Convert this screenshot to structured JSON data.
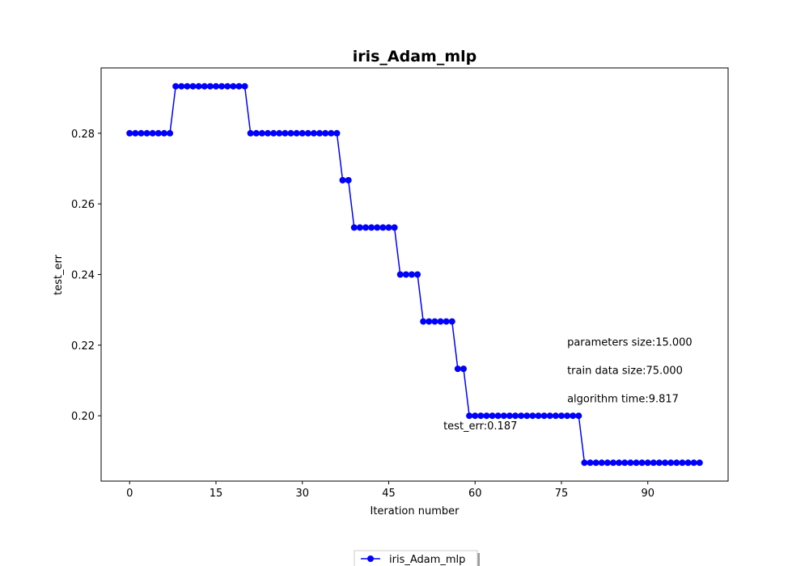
{
  "chart_data": {
    "type": "line",
    "title": "iris_Adam_mlp",
    "xlabel": "Iteration number",
    "ylabel": "test_err",
    "xlim": [
      -4.95,
      103.95
    ],
    "ylim": [
      0.1815,
      0.2985
    ],
    "xticks": [
      0,
      15,
      30,
      45,
      60,
      75,
      90
    ],
    "yticks": [
      0.2,
      0.22,
      0.24,
      0.26,
      0.28
    ],
    "ytick_labels": [
      "0.20",
      "0.22",
      "0.24",
      "0.26",
      "0.28"
    ],
    "grid": false,
    "legend_position": "bottom-center",
    "series": [
      {
        "name": "iris_Adam_mlp",
        "color": "#0000ff",
        "marker": "circle",
        "x": [
          0,
          1,
          2,
          3,
          4,
          5,
          6,
          7,
          8,
          9,
          10,
          11,
          12,
          13,
          14,
          15,
          16,
          17,
          18,
          19,
          20,
          21,
          22,
          23,
          24,
          25,
          26,
          27,
          28,
          29,
          30,
          31,
          32,
          33,
          34,
          35,
          36,
          37,
          38,
          39,
          40,
          41,
          42,
          43,
          44,
          45,
          46,
          47,
          48,
          49,
          50,
          51,
          52,
          53,
          54,
          55,
          56,
          57,
          58,
          59,
          60,
          61,
          62,
          63,
          64,
          65,
          66,
          67,
          68,
          69,
          70,
          71,
          72,
          73,
          74,
          75,
          76,
          77,
          78,
          79,
          80,
          81,
          82,
          83,
          84,
          85,
          86,
          87,
          88,
          89,
          90,
          91,
          92,
          93,
          94,
          95,
          96,
          97,
          98,
          99
        ],
        "values": [
          0.28,
          0.28,
          0.28,
          0.28,
          0.28,
          0.28,
          0.28,
          0.28,
          0.2933,
          0.2933,
          0.2933,
          0.2933,
          0.2933,
          0.2933,
          0.2933,
          0.2933,
          0.2933,
          0.2933,
          0.2933,
          0.2933,
          0.2933,
          0.28,
          0.28,
          0.28,
          0.28,
          0.28,
          0.28,
          0.28,
          0.28,
          0.28,
          0.28,
          0.28,
          0.28,
          0.28,
          0.28,
          0.28,
          0.28,
          0.2667,
          0.2667,
          0.2533,
          0.2533,
          0.2533,
          0.2533,
          0.2533,
          0.2533,
          0.2533,
          0.2533,
          0.24,
          0.24,
          0.24,
          0.24,
          0.2267,
          0.2267,
          0.2267,
          0.2267,
          0.2267,
          0.2267,
          0.2133,
          0.2133,
          0.2,
          0.2,
          0.2,
          0.2,
          0.2,
          0.2,
          0.2,
          0.2,
          0.2,
          0.2,
          0.2,
          0.2,
          0.2,
          0.2,
          0.2,
          0.2,
          0.2,
          0.2,
          0.2,
          0.2,
          0.1867,
          0.1867,
          0.1867,
          0.1867,
          0.1867,
          0.1867,
          0.1867,
          0.1867,
          0.1867,
          0.1867,
          0.1867,
          0.1867,
          0.1867,
          0.1867,
          0.1867,
          0.1867,
          0.1867,
          0.1867,
          0.1867,
          0.1867,
          0.1867
        ]
      }
    ],
    "annotations": [
      {
        "text": "parameters size:15.000",
        "x": 76,
        "y": 0.221
      },
      {
        "text": "train data size:75.000",
        "x": 76,
        "y": 0.213
      },
      {
        "text": "algorithm time:9.817",
        "x": 76,
        "y": 0.205
      },
      {
        "text": "test_err:0.187",
        "x": 54.5,
        "y": 0.1973
      }
    ]
  }
}
